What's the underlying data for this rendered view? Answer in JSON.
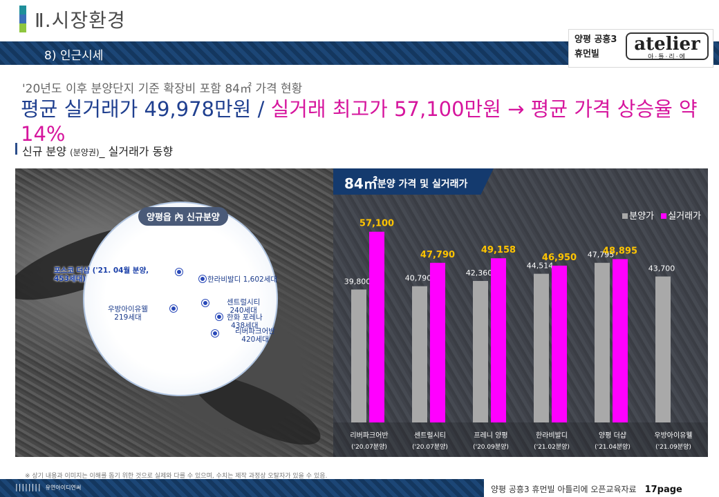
{
  "header": {
    "title": "Ⅱ.시장환경",
    "subsection": "8) 인근시세",
    "accent_colors": [
      "#1f8f9a",
      "#3a6fb8",
      "#8ec63f"
    ]
  },
  "logo": {
    "brand_line1": "양평 공흥3",
    "brand_line2": "휴먼빌",
    "name": "atelier",
    "sub": "아·틀·리·에"
  },
  "headline": {
    "line1": "'20년도 이후 분양단지 기준 확장비 포함 84㎡ 가격 현황",
    "part_blue": "평균 실거래가 49,978만원 / ",
    "part_pink": "실거래 최고가 57,100만원 → 평균 가격 상승율 약 14%"
  },
  "section": {
    "title": "신규 분양 ",
    "title_small": "(분양권)",
    "title_suffix": "_ 실거래가 동향"
  },
  "map": {
    "circle_label": "양평읍 內 신규분양",
    "labels": {
      "poscodesharp": "포스코 더샵 ('21. 04월 분양,\n453세대)",
      "hanra": "한라비발디 1,602세대",
      "central": "센트럴시티\n240세대",
      "hanwha": "한화 포레나\n438세대",
      "riverpark": "리버파크어반\n420세대",
      "wooband": "우방아이유웰\n219세대"
    }
  },
  "chart_data": {
    "type": "bar",
    "title_main": "84㎡",
    "title_rest": "분양 가격 및 실거래가",
    "categories": [
      "리버파크어반",
      "센트럴시티",
      "프레니 양평",
      "한라비발디",
      "양평 더샵",
      "우방아이유웰"
    ],
    "category_dates": [
      "('20.07분양)",
      "('20.07분양)",
      "('20.09분양)",
      "('21.02분양)",
      "('21.04분양)",
      "('21.09분양)"
    ],
    "series": [
      {
        "name": "분양가",
        "values": [
          39800,
          40790,
          42360,
          44514,
          47795,
          43700
        ],
        "labels": [
          "39,800",
          "40,790",
          "42,360",
          "44,514",
          "47,795",
          "43,700"
        ],
        "color": "#a9a9a9"
      },
      {
        "name": "실거래가",
        "values": [
          57100,
          47790,
          49158,
          46950,
          48895,
          null
        ],
        "labels": [
          "57,100",
          "47,790",
          "49,158",
          "46,950",
          "48,895",
          ""
        ],
        "color": "#ff00ff",
        "label_color": "#ffc400"
      }
    ],
    "ylim": [
      0,
      62000
    ],
    "legend_position": "top-right"
  },
  "footer": {
    "disclaimer": "※ 상기 내용과 이미지는 이해를 돕기 위한 것으로 실제와 다를 수 있으며, 수치는 제작 과정상 오탈자가 있을 수 있음.",
    "brand": "||||||||",
    "brand_sub": "유연아이디연써",
    "doc_title": "양평 공흥3 휴먼빌 아틀리에  오픈교육자료",
    "page": "17page"
  }
}
